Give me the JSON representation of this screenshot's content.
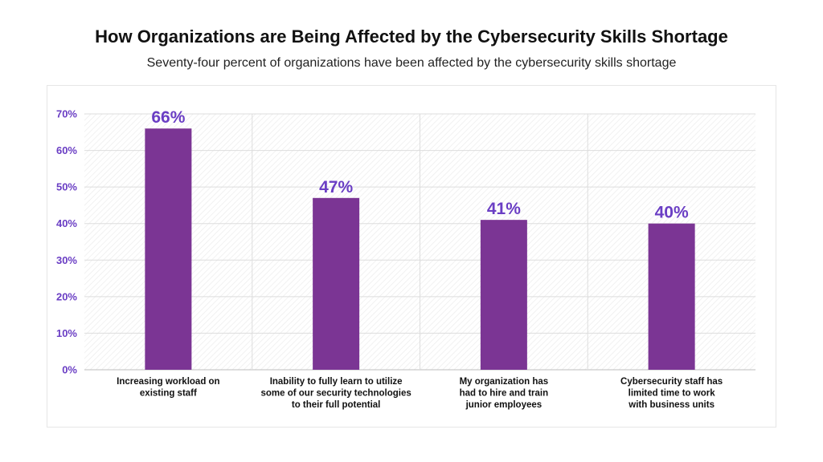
{
  "title": "How Organizations are Being Affected by the Cybersecurity Skills Shortage",
  "subtitle": "Seventy-four percent of organizations have been affected by the cybersecurity skills shortage",
  "colors": {
    "bar": "#7b3594",
    "accent_text": "#6a3ec4",
    "grid": "#dddddd",
    "axis": "#bdbdbd",
    "category_text": "#111111"
  },
  "chart_data": {
    "type": "bar",
    "title": "How Organizations are Being Affected by the Cybersecurity Skills Shortage",
    "subtitle": "Seventy-four percent of organizations have been affected by the cybersecurity skills shortage",
    "categories": [
      [
        "Increasing workload on",
        "existing staff"
      ],
      [
        "Inability to fully learn to utilize",
        "some of our security technologies",
        "to their full potential"
      ],
      [
        "My organization has",
        "had to hire and train",
        "junior employees"
      ],
      [
        "Cybersecurity staff has",
        "limited time to work",
        "with business units"
      ]
    ],
    "values": [
      66,
      47,
      41,
      40
    ],
    "data_labels": [
      "66%",
      "47%",
      "41%",
      "40%"
    ],
    "ylim": [
      0,
      70
    ],
    "yticks": [
      0,
      10,
      20,
      30,
      40,
      50,
      60,
      70
    ],
    "ytick_labels": [
      "0%",
      "10%",
      "20%",
      "30%",
      "40%",
      "50%",
      "60%",
      "70%"
    ],
    "xlabel": "",
    "ylabel": "",
    "grid": true,
    "legend": "none"
  }
}
